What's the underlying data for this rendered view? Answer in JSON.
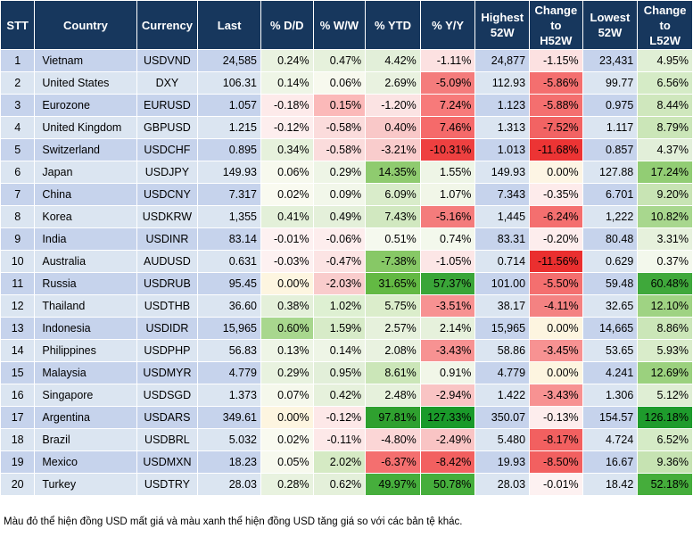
{
  "headers": {
    "stt": "STT",
    "country": "Country",
    "currency": "Currency",
    "last": "Last",
    "dd": "% D/D",
    "ww": "% W/W",
    "ytd": "% YTD",
    "yy": "% Y/Y",
    "high_line1": "Highest",
    "high_line2": "52W",
    "ch52h_line1": "Change",
    "ch52h_line2": "to",
    "ch52h_line3": "H52W",
    "low_line1": "Lowest",
    "low_line2": "52W",
    "ch52l_line1": "Change",
    "ch52l_line2": "to",
    "ch52l_line3": "L52W"
  },
  "colors": {
    "header_bg": "#17375d",
    "row_odd": "#c6d3ec",
    "row_even": "#dbe5f1"
  },
  "rows": [
    {
      "stt": "1",
      "country": "Vietnam",
      "currency": "USDVND",
      "last": "24,585",
      "dd": "0.24%",
      "ww": "0.47%",
      "ytd": "4.42%",
      "yy": "-1.11%",
      "high": "24,877",
      "ch_h": "-1.15%",
      "low": "23,431",
      "ch_l": "4.95%",
      "bg": {
        "dd": "#e9f2e0",
        "ww": "#e6f1dc",
        "ytd": "#e2efd9",
        "yy": "#fce1e1",
        "ch_h": "#fce1e1",
        "ch_l": "#e0efd5"
      }
    },
    {
      "stt": "2",
      "country": "United States",
      "currency": "DXY",
      "last": "106.31",
      "dd": "0.14%",
      "ww": "0.06%",
      "ytd": "2.69%",
      "yy": "-5.09%",
      "high": "112.93",
      "ch_h": "-5.86%",
      "low": "99.77",
      "ch_l": "6.56%",
      "bg": {
        "dd": "#eef5e6",
        "ww": "#f7f9ee",
        "ytd": "#e9f2e0",
        "yy": "#f47c7c",
        "ch_h": "#f46f6f",
        "ch_l": "#d5ebc6"
      }
    },
    {
      "stt": "3",
      "country": "Eurozone",
      "currency": "EURUSD",
      "last": "1.057",
      "dd": "-0.18%",
      "ww": "0.15%",
      "ytd": "-1.20%",
      "yy": "7.24%",
      "high": "1.123",
      "ch_h": "-5.88%",
      "low": "0.975",
      "ch_l": "8.44%",
      "bg": {
        "dd": "#fdeaea",
        "ww": "#fbb9b9",
        "ytd": "#fbe3e3",
        "yy": "#f77a7a",
        "ch_h": "#f46f6f",
        "ch_l": "#cfe7bd"
      }
    },
    {
      "stt": "4",
      "country": "United Kingdom",
      "currency": "GBPUSD",
      "last": "1.215",
      "dd": "-0.12%",
      "ww": "-0.58%",
      "ytd": "0.40%",
      "yy": "7.46%",
      "high": "1.313",
      "ch_h": "-7.52%",
      "low": "1.117",
      "ch_l": "8.79%",
      "bg": {
        "dd": "#fdeeee",
        "ww": "#fbdcdc",
        "ytd": "#f9c8c8",
        "yy": "#f56a6a",
        "ch_h": "#f26363",
        "ch_l": "#cbe6b8"
      }
    },
    {
      "stt": "5",
      "country": "Switzerland",
      "currency": "USDCHF",
      "last": "0.895",
      "dd": "0.34%",
      "ww": "-0.58%",
      "ytd": "-3.21%",
      "yy": "-10.31%",
      "high": "1.013",
      "ch_h": "-11.68%",
      "low": "0.857",
      "ch_l": "4.37%",
      "bg": {
        "dd": "#e6f1dc",
        "ww": "#fbdcdc",
        "ytd": "#f9cccc",
        "yy": "#ee4040",
        "ch_h": "#ec3434",
        "ch_l": "#e2efd9"
      }
    },
    {
      "stt": "6",
      "country": "Japan",
      "currency": "USDJPY",
      "last": "149.93",
      "dd": "0.06%",
      "ww": "0.29%",
      "ytd": "14.35%",
      "yy": "1.55%",
      "high": "149.93",
      "ch_h": "0.00%",
      "low": "127.88",
      "ch_l": "17.24%",
      "bg": {
        "dd": "#f7f9ee",
        "ww": "#eef5e6",
        "ytd": "#8fcb6f",
        "yy": "#eef5e6",
        "ch_h": "#fdf5e4",
        "ch_l": "#92cd74"
      }
    },
    {
      "stt": "7",
      "country": "China",
      "currency": "USDCNY",
      "last": "7.317",
      "dd": "0.02%",
      "ww": "0.09%",
      "ytd": "6.09%",
      "yy": "1.07%",
      "high": "7.343",
      "ch_h": "-0.35%",
      "low": "6.701",
      "ch_l": "9.20%",
      "bg": {
        "dd": "#f9faf0",
        "ww": "#f2f7ea",
        "ytd": "#d9ecca",
        "yy": "#f1f6e8",
        "ch_h": "#fdebeb",
        "ch_l": "#c8e4b4"
      }
    },
    {
      "stt": "8",
      "country": "Korea",
      "currency": "USDKRW",
      "last": "1,355",
      "dd": "0.41%",
      "ww": "0.49%",
      "ytd": "7.43%",
      "yy": "-5.16%",
      "high": "1,445",
      "ch_h": "-6.24%",
      "low": "1,222",
      "ch_l": "10.82%",
      "bg": {
        "dd": "#e3f0d9",
        "ww": "#e4f0da",
        "ytd": "#d1e8c0",
        "yy": "#f47c7c",
        "ch_h": "#f46f6f",
        "ch_l": "#a8d78e"
      }
    },
    {
      "stt": "9",
      "country": "India",
      "currency": "USDINR",
      "last": "83.14",
      "dd": "-0.01%",
      "ww": "-0.06%",
      "ytd": "0.51%",
      "yy": "0.74%",
      "high": "83.31",
      "ch_h": "-0.20%",
      "low": "80.48",
      "ch_l": "3.31%",
      "bg": {
        "dd": "#fdf1f1",
        "ww": "#fdeded",
        "ytd": "#f5f9ee",
        "yy": "#f3f8ec",
        "ch_h": "#fdeded",
        "ch_l": "#e6f1dc"
      }
    },
    {
      "stt": "10",
      "country": "Australia",
      "currency": "AUDUSD",
      "last": "0.631",
      "dd": "-0.03%",
      "ww": "-0.47%",
      "ytd": "-7.38%",
      "yy": "-1.05%",
      "high": "0.714",
      "ch_h": "-11.56%",
      "low": "0.629",
      "ch_l": "0.37%",
      "bg": {
        "dd": "#fdf1f1",
        "ww": "#fce4e4",
        "ytd": "#87c866",
        "yy": "#fce6e6",
        "ch_h": "#ea2f2f",
        "ch_l": "#f3f8ec"
      }
    },
    {
      "stt": "11",
      "country": "Russia",
      "currency": "USDRUB",
      "last": "95.45",
      "dd": "0.00%",
      "ww": "-2.03%",
      "ytd": "31.65%",
      "yy": "57.37%",
      "high": "101.00",
      "ch_h": "-5.50%",
      "low": "59.48",
      "ch_l": "60.48%",
      "bg": {
        "dd": "#fdf5e0",
        "ww": "#f9cccc",
        "ytd": "#63b943",
        "yy": "#3aa538",
        "ch_h": "#f46f6f",
        "ch_l": "#3fa83b"
      }
    },
    {
      "stt": "12",
      "country": "Thailand",
      "currency": "USDTHB",
      "last": "36.60",
      "dd": "0.38%",
      "ww": "1.02%",
      "ytd": "5.75%",
      "yy": "-3.51%",
      "high": "38.17",
      "ch_h": "-4.11%",
      "low": "32.65",
      "ch_l": "12.10%",
      "bg": {
        "dd": "#e4f0da",
        "ww": "#def0d2",
        "ytd": "#dbedcb",
        "yy": "#f79292",
        "ch_h": "#f48282",
        "ch_l": "#9fd383"
      }
    },
    {
      "stt": "13",
      "country": "Indonesia",
      "currency": "USDIDR",
      "last": "15,965",
      "dd": "0.60%",
      "ww": "1.59%",
      "ytd": "2.57%",
      "yy": "2.14%",
      "high": "15,965",
      "ch_h": "0.00%",
      "low": "14,665",
      "ch_l": "8.86%",
      "bg": {
        "dd": "#a8d78e",
        "ww": "#d7ebc8",
        "ytd": "#e6f1dc",
        "yy": "#e6f1dc",
        "ch_h": "#fdf5e0",
        "ch_l": "#cbe6b8"
      }
    },
    {
      "stt": "14",
      "country": "Philippines",
      "currency": "USDPHP",
      "last": "56.83",
      "dd": "0.13%",
      "ww": "0.14%",
      "ytd": "2.08%",
      "yy": "-3.43%",
      "high": "58.86",
      "ch_h": "-3.45%",
      "low": "53.65",
      "ch_l": "5.93%",
      "bg": {
        "dd": "#eef5e6",
        "ww": "#eef5e6",
        "ytd": "#e9f2e0",
        "yy": "#f79292",
        "ch_h": "#f79292",
        "ch_l": "#d9ecca"
      }
    },
    {
      "stt": "15",
      "country": "Malaysia",
      "currency": "USDMYR",
      "last": "4.779",
      "dd": "0.29%",
      "ww": "0.95%",
      "ytd": "8.61%",
      "yy": "0.91%",
      "high": "4.779",
      "ch_h": "0.00%",
      "low": "4.241",
      "ch_l": "12.69%",
      "bg": {
        "dd": "#e8f2df",
        "ww": "#e2efd9",
        "ytd": "#cbe6b8",
        "yy": "#f1f6e8",
        "ch_h": "#fdf5e0",
        "ch_l": "#9bd17e"
      }
    },
    {
      "stt": "16",
      "country": "Singapore",
      "currency": "USDSGD",
      "last": "1.373",
      "dd": "0.07%",
      "ww": "0.42%",
      "ytd": "2.48%",
      "yy": "-2.94%",
      "high": "1.422",
      "ch_h": "-3.43%",
      "low": "1.306",
      "ch_l": "5.12%",
      "bg": {
        "dd": "#f5f8ec",
        "ww": "#e6f1dc",
        "ytd": "#e6f1dc",
        "yy": "#f9c4c4",
        "ch_h": "#f79292",
        "ch_l": "#dfeed4"
      }
    },
    {
      "stt": "17",
      "country": "Argentina",
      "currency": "USDARS",
      "last": "349.61",
      "dd": "0.00%",
      "ww": "-0.12%",
      "ytd": "97.81%",
      "yy": "127.33%",
      "high": "350.07",
      "ch_h": "-0.13%",
      "low": "154.57",
      "ch_l": "126.18%",
      "bg": {
        "dd": "#fdf5e0",
        "ww": "#fde8e8",
        "ytd": "#2fa02f",
        "yy": "#1a9a2a",
        "ch_h": "#fdeded",
        "ch_l": "#1e9b2c"
      }
    },
    {
      "stt": "18",
      "country": "Brazil",
      "currency": "USDBRL",
      "last": "5.032",
      "dd": "0.02%",
      "ww": "-0.11%",
      "ytd": "-4.80%",
      "yy": "-2.49%",
      "high": "5.480",
      "ch_h": "-8.17%",
      "low": "4.724",
      "ch_l": "6.52%",
      "bg": {
        "dd": "#f9faf0",
        "ww": "#fde8e8",
        "ytd": "#fbd6d6",
        "yy": "#f9c4c4",
        "ch_h": "#f26060",
        "ch_l": "#d5ebc6"
      }
    },
    {
      "stt": "19",
      "country": "Mexico",
      "currency": "USDMXN",
      "last": "18.23",
      "dd": "0.05%",
      "ww": "2.02%",
      "ytd": "-6.37%",
      "yy": "-8.42%",
      "high": "19.93",
      "ch_h": "-8.50%",
      "low": "16.67",
      "ch_l": "9.36%",
      "bg": {
        "dd": "#f7f9ee",
        "ww": "#d5eac4",
        "ytd": "#f46f6f",
        "yy": "#f26060",
        "ch_h": "#f26060",
        "ch_l": "#c6e3b2"
      }
    },
    {
      "stt": "20",
      "country": "Turkey",
      "currency": "USDTRY",
      "last": "28.03",
      "dd": "0.28%",
      "ww": "0.62%",
      "ytd": "49.97%",
      "yy": "50.78%",
      "high": "28.03",
      "ch_h": "-0.01%",
      "low": "18.42",
      "ch_l": "52.18%",
      "bg": {
        "dd": "#e8f2df",
        "ww": "#e4f0da",
        "ytd": "#46ae3c",
        "yy": "#46ae3c",
        "ch_h": "#fdf1f1",
        "ch_l": "#45ad3b"
      }
    }
  ],
  "note": "Màu đỏ thể hiện đồng USD mất giá và màu xanh thể hiện đồng USD tăng giá so với các bản tệ khác."
}
